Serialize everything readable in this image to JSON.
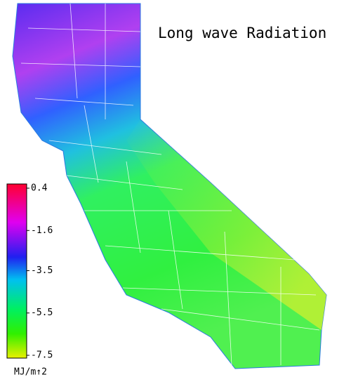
{
  "map": {
    "title": "Long wave Radiation",
    "colorbar": {
      "range": [
        -7.5,
        0.4
      ],
      "ticks": [
        0.4,
        -1.6,
        -3.5,
        -5.5,
        -7.5
      ],
      "unit": "MJ/m↑2"
    }
  }
}
